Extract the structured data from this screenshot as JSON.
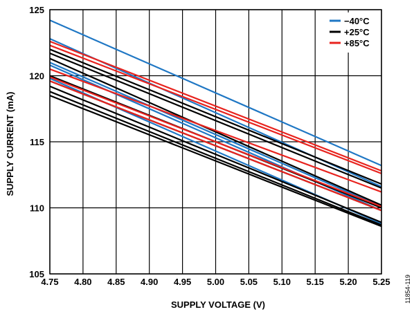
{
  "chart_data": {
    "type": "line",
    "title": "",
    "xlabel": "SUPPLY VOLTAGE (V)",
    "ylabel": "SUPPLY CURRENT (mA)",
    "xlim": [
      4.75,
      5.25
    ],
    "ylim": [
      105,
      125
    ],
    "x_ticks": [
      "4.75",
      "4.80",
      "4.85",
      "4.90",
      "4.95",
      "5.00",
      "5.05",
      "5.10",
      "5.15",
      "5.20",
      "5.25"
    ],
    "y_ticks": [
      "105",
      "110",
      "115",
      "120",
      "125"
    ],
    "grid": true,
    "legend_position": "top-right",
    "x": [
      4.75,
      5.25
    ],
    "series": [
      {
        "name": "−40°C",
        "color": "#1f77c4",
        "lines": [
          [
            124.2,
            113.2
          ],
          [
            122.8,
            111.6
          ],
          [
            121.0,
            110.1
          ],
          [
            120.8,
            109.8
          ],
          [
            119.8,
            108.8
          ]
        ]
      },
      {
        "name": "+25°C",
        "color": "#000000",
        "lines": [
          [
            122.0,
            111.8
          ],
          [
            121.7,
            111.5
          ],
          [
            121.3,
            110.2
          ],
          [
            120.0,
            110.0
          ],
          [
            119.6,
            109.8
          ],
          [
            119.2,
            108.9
          ],
          [
            118.8,
            108.7
          ],
          [
            118.5,
            108.6
          ]
        ]
      },
      {
        "name": "+85°C",
        "color": "#e8231e",
        "lines": [
          [
            122.6,
            112.8
          ],
          [
            122.3,
            112.6
          ],
          [
            120.5,
            111.2
          ],
          [
            119.9,
            110.1
          ],
          [
            119.6,
            109.8
          ]
        ]
      }
    ]
  },
  "figure_id": "11854-119"
}
